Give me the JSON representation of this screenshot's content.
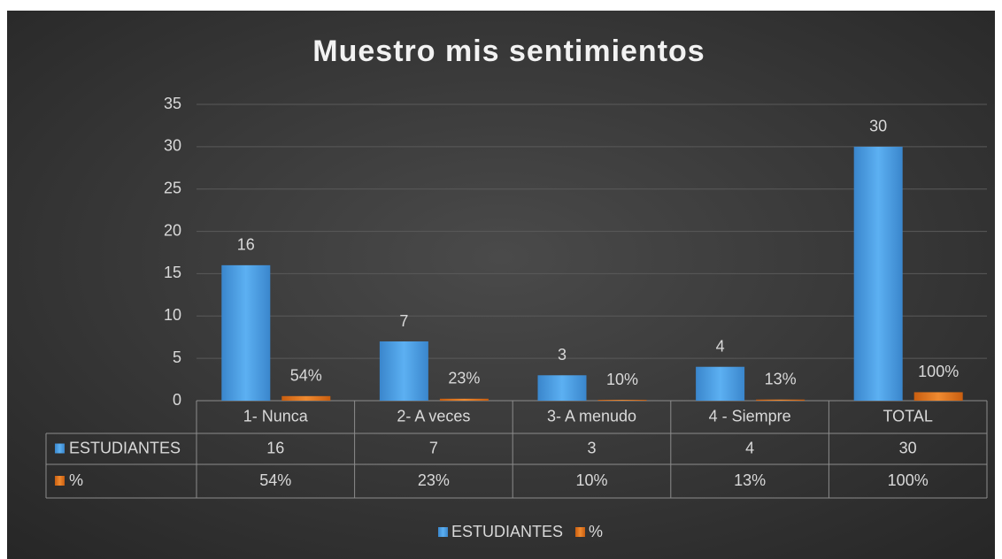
{
  "chart_data": {
    "type": "bar",
    "title": "Muestro mis sentimientos",
    "categories": [
      "1- Nunca",
      "2- A veces",
      "3- A menudo",
      "4 - Siempre",
      "TOTAL"
    ],
    "series": [
      {
        "name": "ESTUDIANTES",
        "color": "#4a9fe6",
        "values": [
          16,
          7,
          3,
          4,
          30
        ]
      },
      {
        "name": "%",
        "color": "#e8781e",
        "values": [
          0.54,
          0.23,
          0.1,
          0.13,
          1
        ],
        "value_labels": [
          "54%",
          "23%",
          "10%",
          "13%",
          "100%"
        ]
      }
    ],
    "ylim": [
      0,
      35
    ],
    "yticks": [
      0,
      5,
      10,
      15,
      20,
      25,
      30,
      35
    ],
    "grid": true,
    "legend": "bottom"
  }
}
